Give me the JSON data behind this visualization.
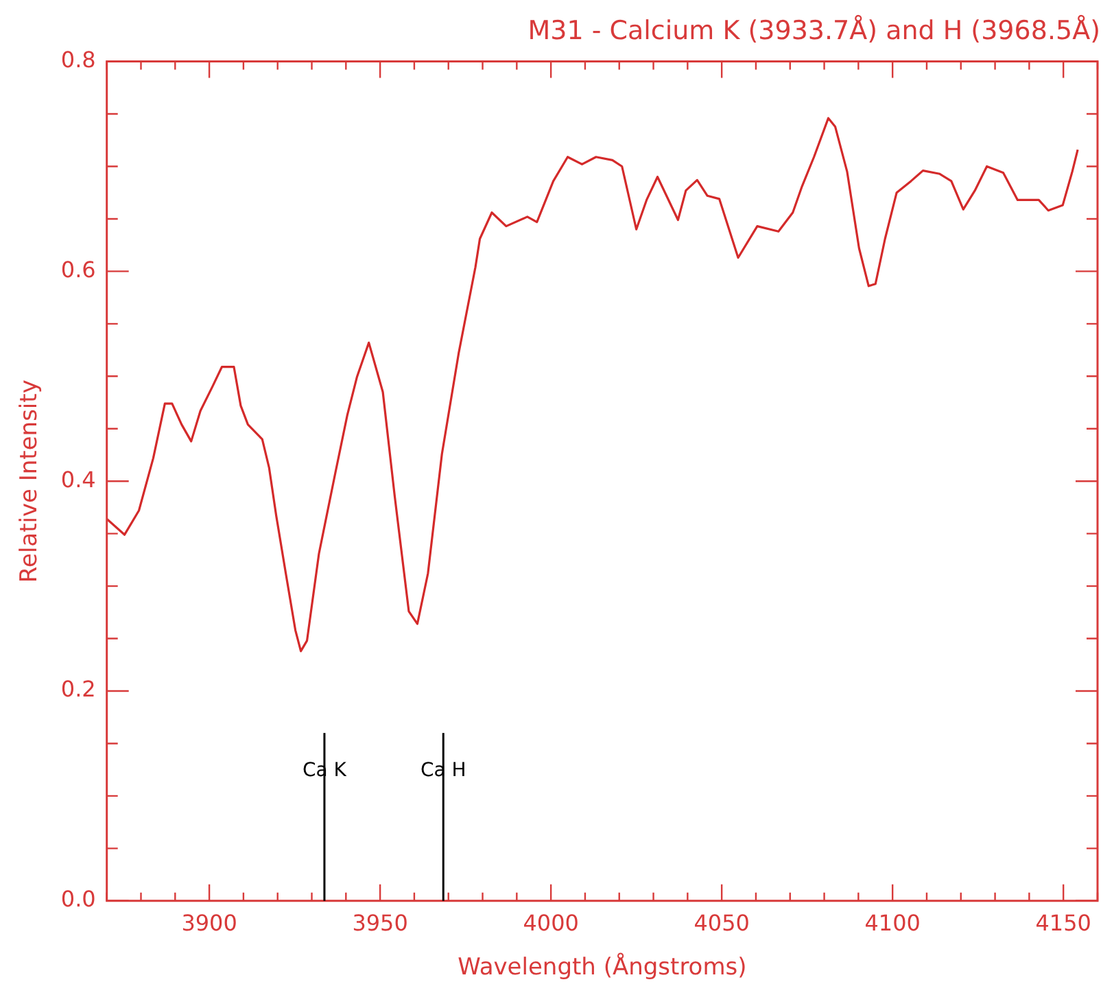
{
  "chart_data": {
    "type": "line",
    "title": "M31 - Calcium K (3933.7Å) and H (3968.5Å)",
    "xlabel": "Wavelength (Ångstroms)",
    "ylabel": "Relative Intensity",
    "x": [
      3870,
      3875.2,
      3879.4,
      3883.6,
      3887,
      3889.1,
      3891.9,
      3894.7,
      3897.4,
      3900.9,
      3903.7,
      3907.2,
      3909.2,
      3911.3,
      3915.5,
      3917.5,
      3919.6,
      3922.4,
      3925.2,
      3926.8,
      3928.6,
      3932.1,
      3936.9,
      3940.4,
      3943.2,
      3946.7,
      3950.8,
      3954.3,
      3958.4,
      3960.9,
      3964,
      3968.1,
      3973,
      3977.9,
      3979.2,
      3982.7,
      3986.9,
      3993.1,
      3995.9,
      4000.7,
      4004.9,
      4009.1,
      4013.2,
      4018,
      4020.8,
      4025,
      4028,
      4031.2,
      4037.2,
      4039.5,
      4042.8,
      4045.8,
      4049.3,
      4054.8,
      4060.4,
      4066.6,
      4070.8,
      4073.5,
      4077,
      4081.2,
      4083.2,
      4086.7,
      4090.2,
      4093,
      4095,
      4097.8,
      4101.2,
      4105.4,
      4108.9,
      4113.7,
      4117.2,
      4120.7,
      4124.1,
      4127.6,
      4132.4,
      4136.6,
      4142.8,
      4145.6,
      4149.8,
      4152.6,
      4154.2
    ],
    "series": [
      {
        "color": "#d42a2a",
        "values": [
          0.364,
          0.349,
          0.372,
          0.422,
          0.474,
          0.474,
          0.454,
          0.438,
          0.467,
          0.49,
          0.509,
          0.509,
          0.472,
          0.454,
          0.44,
          0.413,
          0.367,
          0.312,
          0.258,
          0.238,
          0.248,
          0.331,
          0.408,
          0.463,
          0.499,
          0.532,
          0.485,
          0.385,
          0.276,
          0.264,
          0.312,
          0.426,
          0.522,
          0.604,
          0.631,
          0.656,
          0.643,
          0.652,
          0.647,
          0.686,
          0.709,
          0.702,
          0.709,
          0.706,
          0.7,
          0.64,
          0.668,
          0.69,
          0.649,
          0.677,
          0.687,
          0.672,
          0.669,
          0.613,
          0.643,
          0.638,
          0.656,
          0.681,
          0.709,
          0.746,
          0.738,
          0.695,
          0.622,
          0.586,
          0.588,
          0.631,
          0.675,
          0.686,
          0.696,
          0.693,
          0.686,
          0.659,
          0.677,
          0.7,
          0.694,
          0.668,
          0.668,
          0.658,
          0.663,
          0.695,
          0.716
        ]
      }
    ],
    "xlim": [
      3870,
      4160
    ],
    "xticks": [
      {
        "value": 3870,
        "label": null
      },
      {
        "value": 3880,
        "label": null
      },
      {
        "value": 3890,
        "label": null
      },
      3900,
      {
        "value": 3910,
        "label": null
      },
      {
        "value": 3920,
        "label": null
      },
      {
        "value": 3930,
        "label": null
      },
      {
        "value": 3940,
        "label": null
      },
      3950,
      {
        "value": 3960,
        "label": null
      },
      {
        "value": 3970,
        "label": null
      },
      {
        "value": 3980,
        "label": null
      },
      {
        "value": 3990,
        "label": null
      },
      4000,
      {
        "value": 4010,
        "label": null
      },
      {
        "value": 4020,
        "label": null
      },
      {
        "value": 4030,
        "label": null
      },
      {
        "value": 4040,
        "label": null
      },
      4050,
      {
        "value": 4060,
        "label": null
      },
      {
        "value": 4070,
        "label": null
      },
      {
        "value": 4080,
        "label": null
      },
      {
        "value": 4090,
        "label": null
      },
      4100,
      {
        "value": 4110,
        "label": null
      },
      {
        "value": 4120,
        "label": null
      },
      {
        "value": 4130,
        "label": null
      },
      {
        "value": 4140,
        "label": null
      },
      4150,
      {
        "value": 4160,
        "label": null
      }
    ],
    "ylim": [
      0,
      0.8
    ],
    "yticks": [
      {
        "value": 0,
        "label": "0.0"
      },
      {
        "value": 0.05,
        "label": null
      },
      {
        "value": 0.1,
        "label": null
      },
      {
        "value": 0.15,
        "label": null
      },
      0.2,
      {
        "value": 0.25,
        "label": null
      },
      {
        "value": 0.3,
        "label": null
      },
      {
        "value": 0.35,
        "label": null
      },
      0.4,
      {
        "value": 0.45,
        "label": null
      },
      {
        "value": 0.5,
        "label": null
      },
      {
        "value": 0.55,
        "label": null
      },
      0.6,
      {
        "value": 0.65,
        "label": null
      },
      {
        "value": 0.7,
        "label": null
      },
      {
        "value": 0.75,
        "label": null
      },
      0.8
    ],
    "ref_lines": [
      {
        "axis": "x",
        "value": 3933.7,
        "label": "Ca K",
        "color": "#000000"
      },
      {
        "axis": "x",
        "value": 3968.5,
        "label": "Ca H",
        "color": "#000000"
      }
    ],
    "grid": false,
    "legend": false,
    "marker": "none",
    "line_style": "solid"
  }
}
